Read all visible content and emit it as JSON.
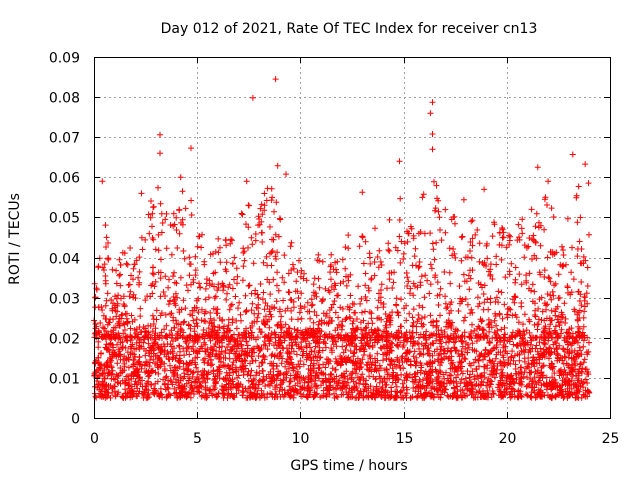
{
  "chart_data": {
    "type": "scatter",
    "title": "Day 012 of 2021, Rate Of TEC Index for receiver cn13",
    "xlabel": "GPS time / hours",
    "ylabel": "ROTI / TECUs",
    "xlim": [
      0,
      25
    ],
    "ylim": [
      0,
      0.09
    ],
    "x_ticks": [
      0,
      5,
      10,
      15,
      20,
      25
    ],
    "x_tick_labels": [
      "0",
      "5",
      "10",
      "15",
      "20",
      "25"
    ],
    "y_ticks": [
      0,
      0.01,
      0.02,
      0.03,
      0.04,
      0.05,
      0.06,
      0.07,
      0.08,
      0.09
    ],
    "y_tick_labels": [
      "0",
      "0.01",
      "0.02",
      "0.03",
      "0.04",
      "0.05",
      "0.06",
      "0.07",
      "0.08",
      "0.09"
    ],
    "grid": true,
    "marker": "+",
    "color": "#ff0000",
    "x_data_range": [
      0,
      24
    ],
    "dense_band": [
      0.005,
      0.02
    ],
    "notable_points": [
      {
        "x": 8.8,
        "y": 0.0845
      },
      {
        "x": 7.7,
        "y": 0.0798
      },
      {
        "x": 16.4,
        "y": 0.0787
      },
      {
        "x": 16.3,
        "y": 0.076
      },
      {
        "x": 3.2,
        "y": 0.0706
      },
      {
        "x": 16.4,
        "y": 0.0708
      },
      {
        "x": 16.4,
        "y": 0.067
      },
      {
        "x": 4.7,
        "y": 0.0673
      },
      {
        "x": 3.2,
        "y": 0.066
      },
      {
        "x": 23.2,
        "y": 0.0657
      },
      {
        "x": 14.8,
        "y": 0.064
      },
      {
        "x": 23.8,
        "y": 0.0633
      },
      {
        "x": 8.9,
        "y": 0.0629
      },
      {
        "x": 21.5,
        "y": 0.0625
      },
      {
        "x": 9.3,
        "y": 0.0608
      },
      {
        "x": 4.2,
        "y": 0.06
      },
      {
        "x": 0.4,
        "y": 0.059
      },
      {
        "x": 7.4,
        "y": 0.059
      },
      {
        "x": 22.0,
        "y": 0.059
      },
      {
        "x": 13.0,
        "y": 0.0563
      },
      {
        "x": 2.3,
        "y": 0.056
      },
      {
        "x": 18.9,
        "y": 0.057
      }
    ],
    "envelope": [
      {
        "x": 0.0,
        "y_max": 0.033
      },
      {
        "x": 0.5,
        "y_max": 0.051
      },
      {
        "x": 1.0,
        "y_max": 0.035
      },
      {
        "x": 1.5,
        "y_max": 0.048
      },
      {
        "x": 2.0,
        "y_max": 0.04
      },
      {
        "x": 2.5,
        "y_max": 0.055
      },
      {
        "x": 3.0,
        "y_max": 0.06
      },
      {
        "x": 3.5,
        "y_max": 0.054
      },
      {
        "x": 4.0,
        "y_max": 0.052
      },
      {
        "x": 4.5,
        "y_max": 0.06
      },
      {
        "x": 5.0,
        "y_max": 0.05
      },
      {
        "x": 5.5,
        "y_max": 0.042
      },
      {
        "x": 6.0,
        "y_max": 0.045
      },
      {
        "x": 6.5,
        "y_max": 0.045
      },
      {
        "x": 7.0,
        "y_max": 0.048
      },
      {
        "x": 7.5,
        "y_max": 0.058
      },
      {
        "x": 8.0,
        "y_max": 0.052
      },
      {
        "x": 8.5,
        "y_max": 0.06
      },
      {
        "x": 9.0,
        "y_max": 0.055
      },
      {
        "x": 9.5,
        "y_max": 0.045
      },
      {
        "x": 10.0,
        "y_max": 0.04
      },
      {
        "x": 10.5,
        "y_max": 0.032
      },
      {
        "x": 11.0,
        "y_max": 0.045
      },
      {
        "x": 11.5,
        "y_max": 0.042
      },
      {
        "x": 12.0,
        "y_max": 0.045
      },
      {
        "x": 12.5,
        "y_max": 0.048
      },
      {
        "x": 13.0,
        "y_max": 0.046
      },
      {
        "x": 13.5,
        "y_max": 0.05
      },
      {
        "x": 14.0,
        "y_max": 0.04
      },
      {
        "x": 14.5,
        "y_max": 0.055
      },
      {
        "x": 15.0,
        "y_max": 0.062
      },
      {
        "x": 15.5,
        "y_max": 0.048
      },
      {
        "x": 16.0,
        "y_max": 0.058
      },
      {
        "x": 16.5,
        "y_max": 0.06
      },
      {
        "x": 17.0,
        "y_max": 0.056
      },
      {
        "x": 17.5,
        "y_max": 0.052
      },
      {
        "x": 18.0,
        "y_max": 0.058
      },
      {
        "x": 18.5,
        "y_max": 0.048
      },
      {
        "x": 19.0,
        "y_max": 0.052
      },
      {
        "x": 19.5,
        "y_max": 0.05
      },
      {
        "x": 20.0,
        "y_max": 0.046
      },
      {
        "x": 20.5,
        "y_max": 0.048
      },
      {
        "x": 21.0,
        "y_max": 0.052
      },
      {
        "x": 21.5,
        "y_max": 0.06
      },
      {
        "x": 22.0,
        "y_max": 0.055
      },
      {
        "x": 22.5,
        "y_max": 0.05
      },
      {
        "x": 23.0,
        "y_max": 0.052
      },
      {
        "x": 23.5,
        "y_max": 0.058
      },
      {
        "x": 24.0,
        "y_max": 0.06
      }
    ]
  }
}
